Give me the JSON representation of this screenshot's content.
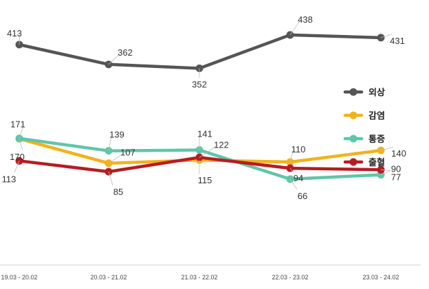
{
  "chart_data": {
    "type": "line",
    "categories": [
      "19.03 - 20.02",
      "20.03 - 21.02",
      "21.03 - 22.02",
      "22.03 - 23.02",
      "23.03 - 24.02"
    ],
    "series": [
      {
        "name": "외상",
        "color": "#555555",
        "values": [
          413,
          362,
          352,
          438,
          431
        ]
      },
      {
        "name": "감염",
        "color": "#F2B21C",
        "values": [
          170,
          107,
          115,
          110,
          140
        ]
      },
      {
        "name": "통증",
        "color": "#5FC6A8",
        "values": [
          171,
          139,
          141,
          66,
          77
        ]
      },
      {
        "name": "출혈",
        "color": "#B61C22",
        "values": [
          113,
          85,
          122,
          94,
          90
        ]
      }
    ],
    "legend_position": "right",
    "grid": false
  }
}
